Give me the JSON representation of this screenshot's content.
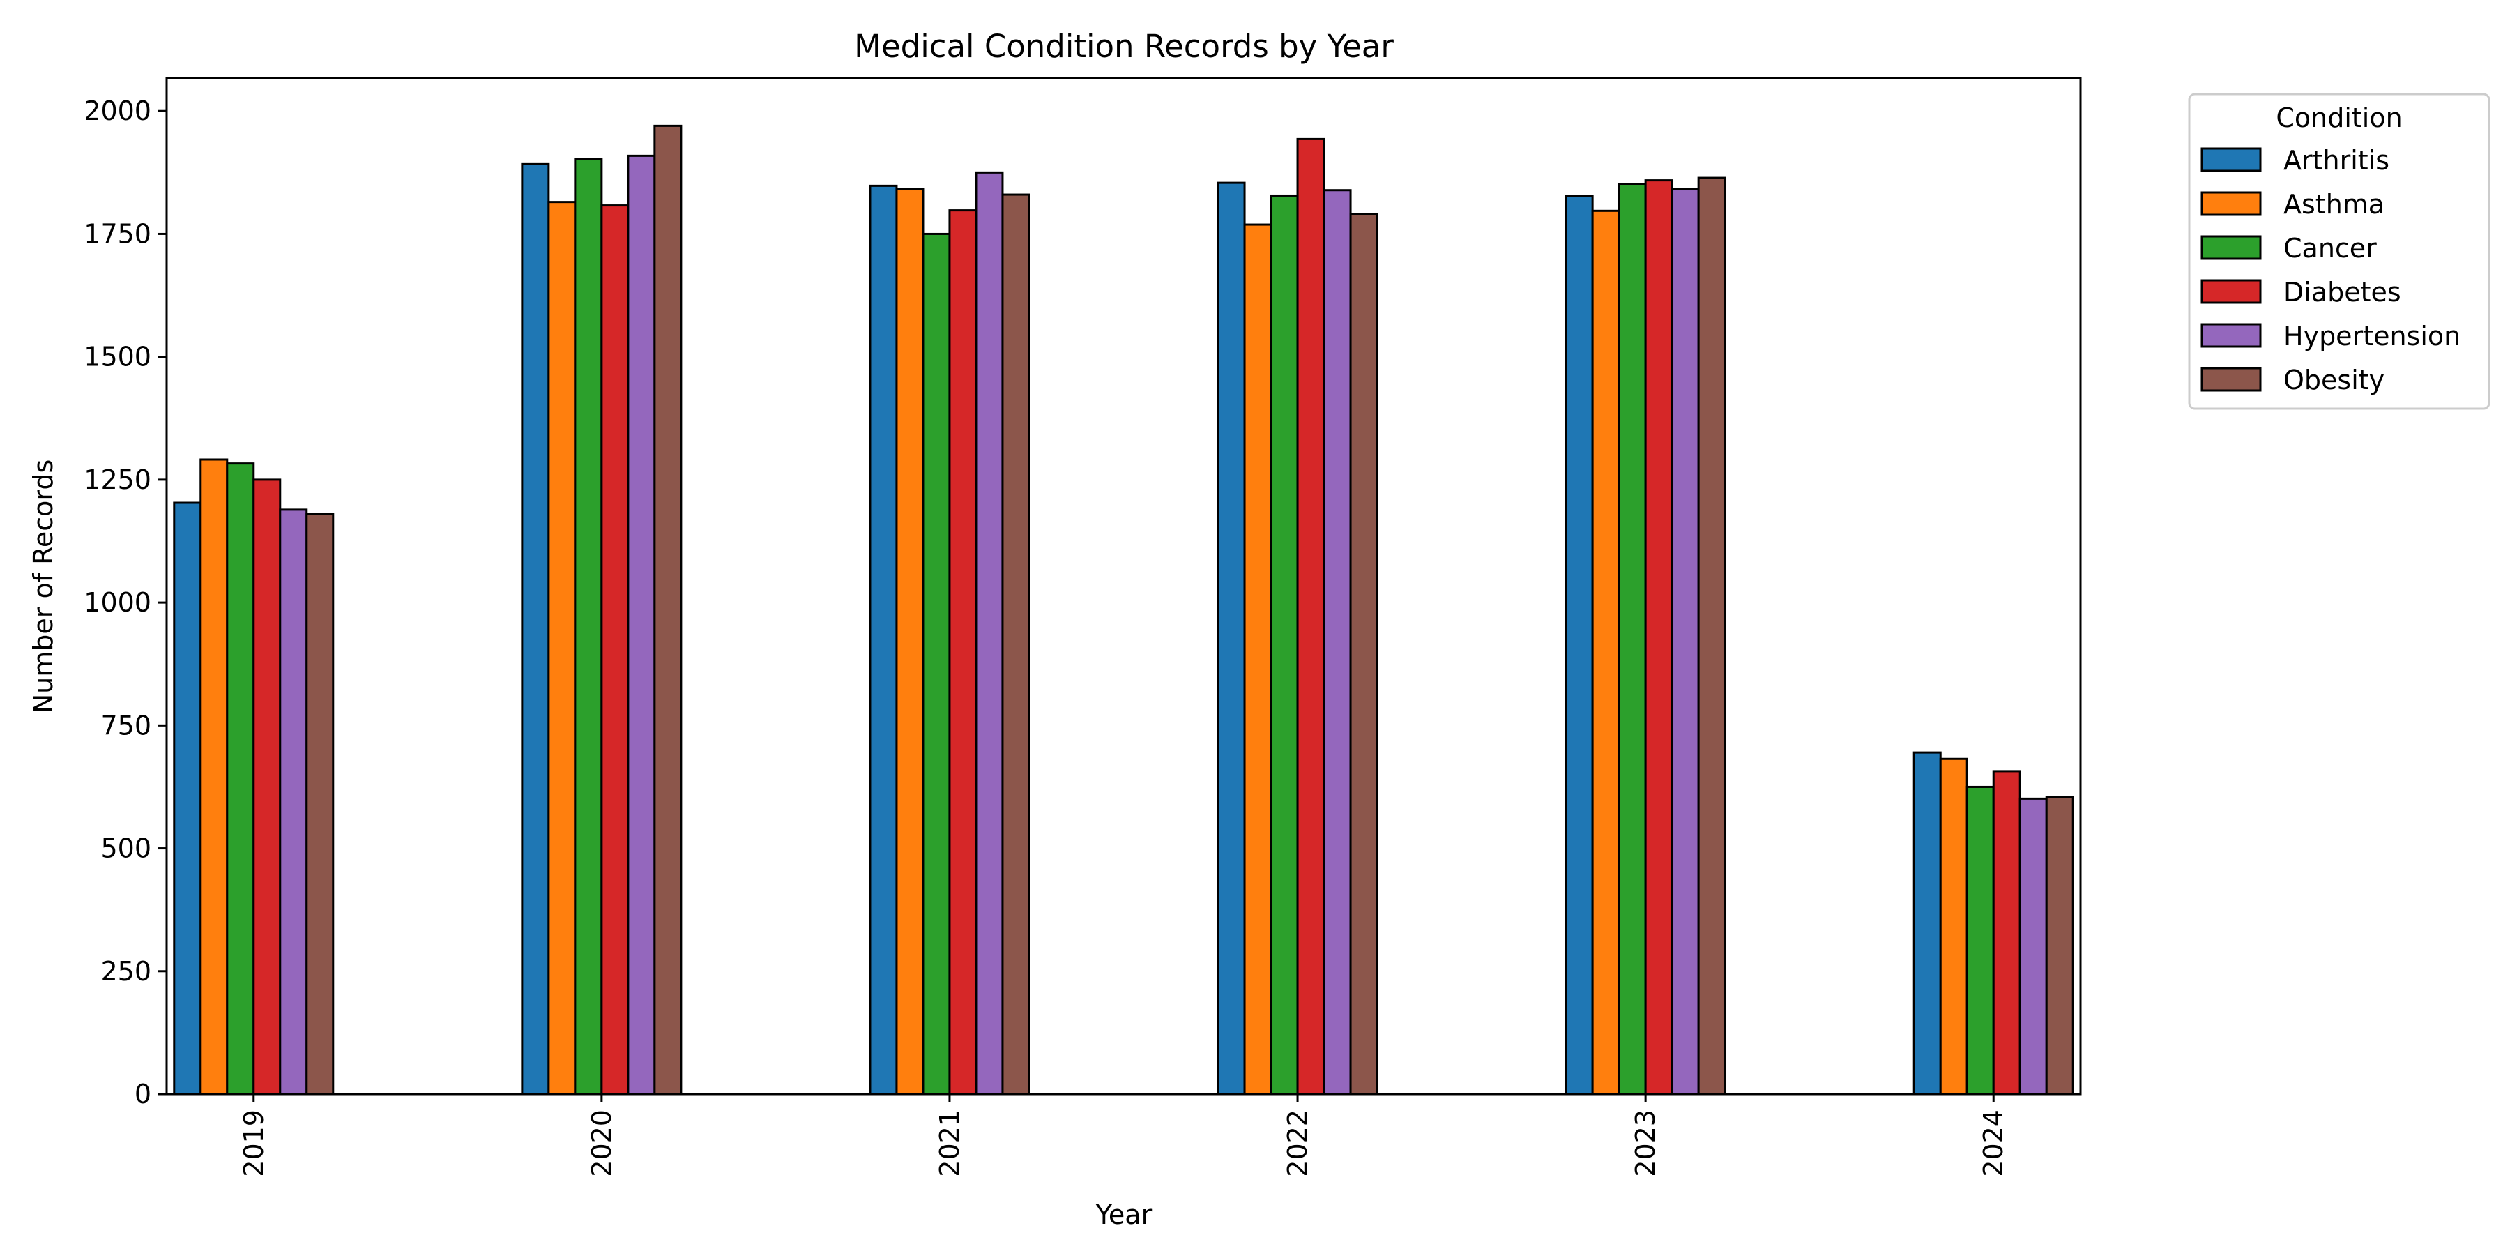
{
  "chart_data": {
    "type": "bar",
    "title": "Medical Condition Records by Year",
    "xlabel": "Year",
    "ylabel": "Number of Records",
    "categories": [
      "2019",
      "2020",
      "2021",
      "2022",
      "2023",
      "2024"
    ],
    "ylim": [
      0,
      2067
    ],
    "yticks": [
      0,
      250,
      500,
      750,
      1000,
      1250,
      1500,
      1750,
      2000
    ],
    "grid": false,
    "legend": {
      "title": "Condition",
      "placement": "outside-top-right"
    },
    "series": [
      {
        "name": "Arthritis",
        "color": "#1f77b4",
        "values": [
          1203,
          1892,
          1848,
          1854,
          1827,
          695
        ]
      },
      {
        "name": "Asthma",
        "color": "#ff7f0e",
        "values": [
          1291,
          1815,
          1842,
          1769,
          1797,
          682
        ]
      },
      {
        "name": "Cancer",
        "color": "#2ca02c",
        "values": [
          1283,
          1903,
          1750,
          1828,
          1852,
          625
        ]
      },
      {
        "name": "Diabetes",
        "color": "#d62728",
        "values": [
          1250,
          1808,
          1798,
          1943,
          1859,
          657
        ]
      },
      {
        "name": "Hypertension",
        "color": "#9467bd",
        "values": [
          1189,
          1909,
          1875,
          1839,
          1842,
          601
        ]
      },
      {
        "name": "Obesity",
        "color": "#8c564b",
        "values": [
          1181,
          1970,
          1830,
          1790,
          1864,
          605
        ]
      }
    ]
  }
}
